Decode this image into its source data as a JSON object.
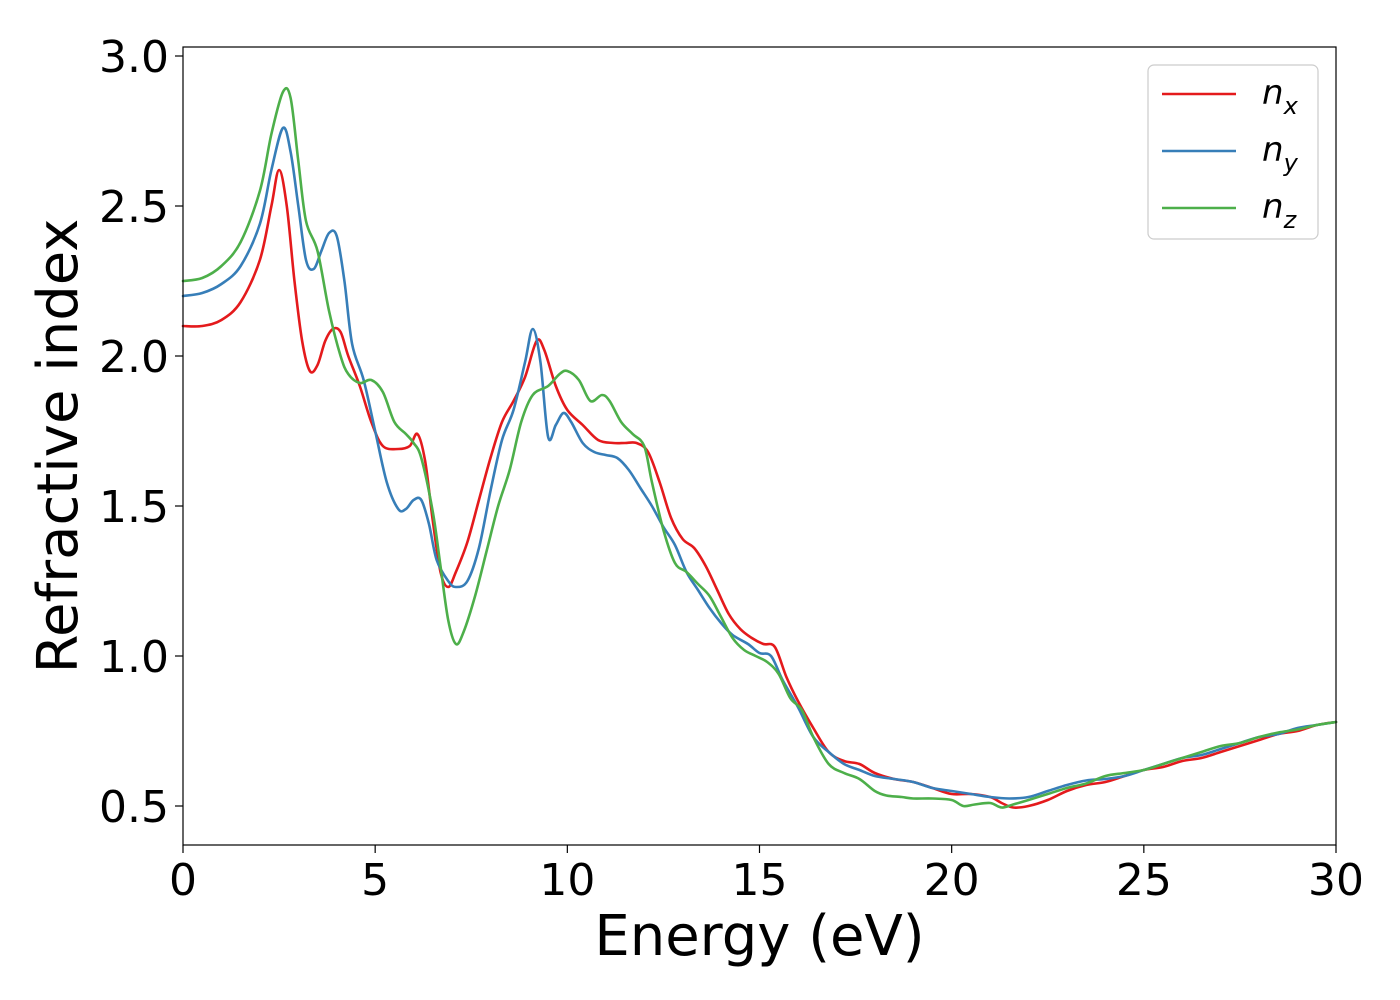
{
  "chart_data": {
    "type": "line",
    "title": "",
    "xlabel": "Energy (eV)",
    "ylabel": "Refractive index",
    "xlim": [
      0,
      30
    ],
    "ylim": [
      0.37,
      3.03
    ],
    "xticks": [
      0,
      5,
      10,
      15,
      20,
      25,
      30
    ],
    "xtick_labels": [
      "0",
      "5",
      "10",
      "15",
      "20",
      "25",
      "30"
    ],
    "yticks": [
      0.5,
      1.0,
      1.5,
      2.0,
      2.5,
      3.0
    ],
    "ytick_labels": [
      "0.5",
      "1.0",
      "1.5",
      "2.0",
      "2.5",
      "3.0"
    ],
    "grid": false,
    "legend_position": "top-right",
    "series": [
      {
        "name": "n_x",
        "label_main": "n",
        "label_sub": "x",
        "color": "#e41a1c",
        "points": [
          [
            0,
            2.1
          ],
          [
            0.5,
            2.1
          ],
          [
            1.0,
            2.12
          ],
          [
            1.5,
            2.18
          ],
          [
            2.0,
            2.32
          ],
          [
            2.3,
            2.5
          ],
          [
            2.5,
            2.62
          ],
          [
            2.7,
            2.5
          ],
          [
            2.9,
            2.25
          ],
          [
            3.1,
            2.05
          ],
          [
            3.3,
            1.95
          ],
          [
            3.5,
            1.97
          ],
          [
            3.7,
            2.05
          ],
          [
            3.9,
            2.09
          ],
          [
            4.1,
            2.08
          ],
          [
            4.3,
            2.0
          ],
          [
            4.6,
            1.9
          ],
          [
            4.9,
            1.78
          ],
          [
            5.2,
            1.7
          ],
          [
            5.6,
            1.69
          ],
          [
            5.9,
            1.7
          ],
          [
            6.1,
            1.74
          ],
          [
            6.3,
            1.65
          ],
          [
            6.5,
            1.45
          ],
          [
            6.7,
            1.28
          ],
          [
            6.9,
            1.23
          ],
          [
            7.1,
            1.28
          ],
          [
            7.4,
            1.38
          ],
          [
            7.7,
            1.52
          ],
          [
            8.0,
            1.66
          ],
          [
            8.3,
            1.78
          ],
          [
            8.6,
            1.85
          ],
          [
            8.9,
            1.93
          ],
          [
            9.2,
            2.05
          ],
          [
            9.4,
            2.02
          ],
          [
            9.7,
            1.9
          ],
          [
            10.0,
            1.82
          ],
          [
            10.4,
            1.77
          ],
          [
            10.8,
            1.72
          ],
          [
            11.2,
            1.71
          ],
          [
            11.5,
            1.71
          ],
          [
            11.8,
            1.71
          ],
          [
            12.1,
            1.68
          ],
          [
            12.4,
            1.58
          ],
          [
            12.7,
            1.46
          ],
          [
            13.0,
            1.39
          ],
          [
            13.3,
            1.36
          ],
          [
            13.6,
            1.3
          ],
          [
            13.9,
            1.22
          ],
          [
            14.2,
            1.14
          ],
          [
            14.5,
            1.09
          ],
          [
            14.8,
            1.06
          ],
          [
            15.1,
            1.04
          ],
          [
            15.4,
            1.03
          ],
          [
            15.7,
            0.93
          ],
          [
            16.0,
            0.85
          ],
          [
            16.4,
            0.76
          ],
          [
            16.8,
            0.68
          ],
          [
            17.2,
            0.65
          ],
          [
            17.6,
            0.64
          ],
          [
            18.0,
            0.61
          ],
          [
            18.5,
            0.59
          ],
          [
            19.0,
            0.58
          ],
          [
            19.5,
            0.56
          ],
          [
            20.0,
            0.54
          ],
          [
            20.5,
            0.54
          ],
          [
            21.0,
            0.53
          ],
          [
            21.3,
            0.51
          ],
          [
            21.6,
            0.495
          ],
          [
            22.0,
            0.5
          ],
          [
            22.5,
            0.52
          ],
          [
            23.0,
            0.55
          ],
          [
            23.5,
            0.57
          ],
          [
            24.0,
            0.58
          ],
          [
            24.5,
            0.6
          ],
          [
            25.0,
            0.62
          ],
          [
            25.5,
            0.63
          ],
          [
            26.0,
            0.65
          ],
          [
            26.5,
            0.66
          ],
          [
            27.0,
            0.68
          ],
          [
            27.5,
            0.7
          ],
          [
            28.0,
            0.72
          ],
          [
            28.5,
            0.74
          ],
          [
            29.0,
            0.75
          ],
          [
            29.5,
            0.77
          ],
          [
            30.0,
            0.78
          ]
        ]
      },
      {
        "name": "n_y",
        "label_main": "n",
        "label_sub": "y",
        "color": "#377eb8",
        "points": [
          [
            0,
            2.2
          ],
          [
            0.5,
            2.21
          ],
          [
            1.0,
            2.24
          ],
          [
            1.5,
            2.3
          ],
          [
            2.0,
            2.44
          ],
          [
            2.3,
            2.62
          ],
          [
            2.6,
            2.76
          ],
          [
            2.8,
            2.68
          ],
          [
            3.0,
            2.5
          ],
          [
            3.2,
            2.32
          ],
          [
            3.4,
            2.29
          ],
          [
            3.6,
            2.35
          ],
          [
            3.8,
            2.41
          ],
          [
            4.0,
            2.4
          ],
          [
            4.2,
            2.25
          ],
          [
            4.4,
            2.04
          ],
          [
            4.7,
            1.92
          ],
          [
            5.0,
            1.75
          ],
          [
            5.3,
            1.58
          ],
          [
            5.6,
            1.49
          ],
          [
            5.8,
            1.49
          ],
          [
            6.0,
            1.52
          ],
          [
            6.2,
            1.52
          ],
          [
            6.4,
            1.44
          ],
          [
            6.6,
            1.32
          ],
          [
            6.9,
            1.25
          ],
          [
            7.1,
            1.23
          ],
          [
            7.4,
            1.25
          ],
          [
            7.7,
            1.36
          ],
          [
            8.0,
            1.55
          ],
          [
            8.3,
            1.72
          ],
          [
            8.6,
            1.82
          ],
          [
            8.9,
            1.98
          ],
          [
            9.1,
            2.09
          ],
          [
            9.3,
            1.98
          ],
          [
            9.5,
            1.73
          ],
          [
            9.7,
            1.77
          ],
          [
            9.9,
            1.81
          ],
          [
            10.1,
            1.78
          ],
          [
            10.4,
            1.71
          ],
          [
            10.7,
            1.68
          ],
          [
            11.0,
            1.67
          ],
          [
            11.3,
            1.66
          ],
          [
            11.6,
            1.62
          ],
          [
            11.9,
            1.56
          ],
          [
            12.2,
            1.5
          ],
          [
            12.5,
            1.43
          ],
          [
            12.8,
            1.37
          ],
          [
            13.1,
            1.28
          ],
          [
            13.4,
            1.22
          ],
          [
            13.7,
            1.16
          ],
          [
            14.0,
            1.11
          ],
          [
            14.3,
            1.07
          ],
          [
            14.7,
            1.04
          ],
          [
            15.0,
            1.01
          ],
          [
            15.3,
            1.0
          ],
          [
            15.6,
            0.92
          ],
          [
            16.0,
            0.83
          ],
          [
            16.4,
            0.73
          ],
          [
            16.8,
            0.68
          ],
          [
            17.2,
            0.64
          ],
          [
            17.6,
            0.62
          ],
          [
            18.0,
            0.6
          ],
          [
            18.5,
            0.59
          ],
          [
            19.0,
            0.58
          ],
          [
            19.5,
            0.56
          ],
          [
            20.0,
            0.55
          ],
          [
            20.5,
            0.54
          ],
          [
            21.0,
            0.53
          ],
          [
            21.5,
            0.525
          ],
          [
            22.0,
            0.53
          ],
          [
            22.5,
            0.55
          ],
          [
            23.0,
            0.57
          ],
          [
            23.5,
            0.585
          ],
          [
            24.0,
            0.59
          ],
          [
            24.5,
            0.6
          ],
          [
            25.0,
            0.62
          ],
          [
            25.5,
            0.64
          ],
          [
            26.0,
            0.66
          ],
          [
            26.5,
            0.67
          ],
          [
            27.0,
            0.69
          ],
          [
            27.5,
            0.71
          ],
          [
            28.0,
            0.73
          ],
          [
            28.5,
            0.74
          ],
          [
            29.0,
            0.76
          ],
          [
            29.5,
            0.77
          ],
          [
            30.0,
            0.78
          ]
        ]
      },
      {
        "name": "n_z",
        "label_main": "n",
        "label_sub": "z",
        "color": "#4daf4a",
        "points": [
          [
            0,
            2.25
          ],
          [
            0.5,
            2.26
          ],
          [
            1.0,
            2.3
          ],
          [
            1.5,
            2.38
          ],
          [
            2.0,
            2.55
          ],
          [
            2.3,
            2.74
          ],
          [
            2.6,
            2.88
          ],
          [
            2.8,
            2.86
          ],
          [
            3.0,
            2.65
          ],
          [
            3.2,
            2.45
          ],
          [
            3.5,
            2.35
          ],
          [
            3.8,
            2.15
          ],
          [
            4.1,
            2.0
          ],
          [
            4.3,
            1.94
          ],
          [
            4.6,
            1.91
          ],
          [
            4.9,
            1.92
          ],
          [
            5.2,
            1.88
          ],
          [
            5.5,
            1.78
          ],
          [
            5.8,
            1.74
          ],
          [
            6.0,
            1.71
          ],
          [
            6.2,
            1.66
          ],
          [
            6.5,
            1.48
          ],
          [
            6.7,
            1.3
          ],
          [
            6.9,
            1.12
          ],
          [
            7.1,
            1.04
          ],
          [
            7.3,
            1.08
          ],
          [
            7.6,
            1.2
          ],
          [
            7.9,
            1.35
          ],
          [
            8.2,
            1.5
          ],
          [
            8.5,
            1.62
          ],
          [
            8.8,
            1.78
          ],
          [
            9.1,
            1.87
          ],
          [
            9.5,
            1.9
          ],
          [
            9.8,
            1.94
          ],
          [
            10.0,
            1.95
          ],
          [
            10.3,
            1.92
          ],
          [
            10.6,
            1.85
          ],
          [
            10.9,
            1.87
          ],
          [
            11.1,
            1.85
          ],
          [
            11.4,
            1.78
          ],
          [
            11.7,
            1.74
          ],
          [
            12.0,
            1.7
          ],
          [
            12.2,
            1.58
          ],
          [
            12.5,
            1.42
          ],
          [
            12.8,
            1.31
          ],
          [
            13.1,
            1.28
          ],
          [
            13.4,
            1.24
          ],
          [
            13.7,
            1.2
          ],
          [
            14.0,
            1.13
          ],
          [
            14.3,
            1.06
          ],
          [
            14.6,
            1.02
          ],
          [
            14.9,
            1.0
          ],
          [
            15.2,
            0.98
          ],
          [
            15.5,
            0.94
          ],
          [
            15.8,
            0.86
          ],
          [
            16.1,
            0.82
          ],
          [
            16.4,
            0.73
          ],
          [
            16.8,
            0.64
          ],
          [
            17.2,
            0.61
          ],
          [
            17.6,
            0.59
          ],
          [
            18.0,
            0.55
          ],
          [
            18.3,
            0.535
          ],
          [
            18.7,
            0.53
          ],
          [
            19.0,
            0.525
          ],
          [
            19.5,
            0.525
          ],
          [
            20.0,
            0.52
          ],
          [
            20.3,
            0.5
          ],
          [
            20.6,
            0.505
          ],
          [
            21.0,
            0.51
          ],
          [
            21.3,
            0.495
          ],
          [
            21.6,
            0.505
          ],
          [
            22.0,
            0.52
          ],
          [
            22.5,
            0.54
          ],
          [
            23.0,
            0.56
          ],
          [
            23.5,
            0.575
          ],
          [
            24.0,
            0.6
          ],
          [
            24.5,
            0.61
          ],
          [
            25.0,
            0.62
          ],
          [
            25.5,
            0.64
          ],
          [
            26.0,
            0.66
          ],
          [
            26.5,
            0.68
          ],
          [
            27.0,
            0.7
          ],
          [
            27.5,
            0.71
          ],
          [
            28.0,
            0.73
          ],
          [
            28.5,
            0.745
          ],
          [
            29.0,
            0.755
          ],
          [
            29.5,
            0.77
          ],
          [
            30.0,
            0.78
          ]
        ]
      }
    ]
  }
}
